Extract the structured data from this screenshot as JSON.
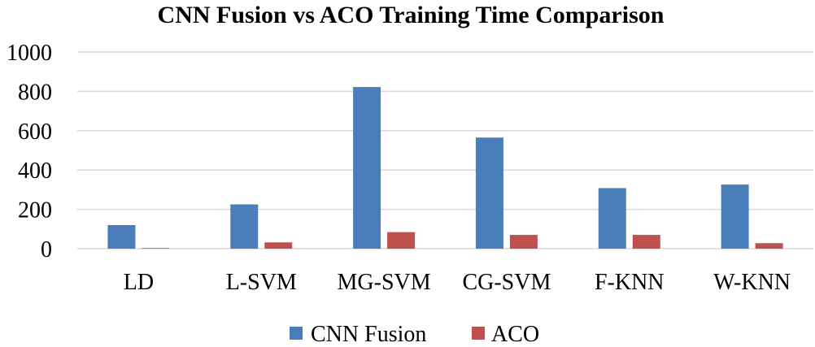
{
  "chart_data": {
    "type": "bar",
    "title": "CNN Fusion vs ACO Training Time Comparison",
    "xlabel": "",
    "ylabel": "",
    "categories": [
      "LD",
      "L-SVM",
      "MG-SVM",
      "CG-SVM",
      "F-KNN",
      "W-KNN"
    ],
    "series": [
      {
        "name": "CNN Fusion",
        "color": "#4a7ebb",
        "values": [
          120,
          225,
          822,
          565,
          308,
          326
        ]
      },
      {
        "name": "ACO",
        "color": "#c0504d",
        "values": [
          3,
          32,
          84,
          70,
          70,
          28
        ]
      }
    ],
    "ylim": [
      0,
      1000
    ],
    "yticks": [
      0,
      200,
      400,
      600,
      800,
      1000
    ],
    "grid": true,
    "legend_position": "bottom"
  }
}
